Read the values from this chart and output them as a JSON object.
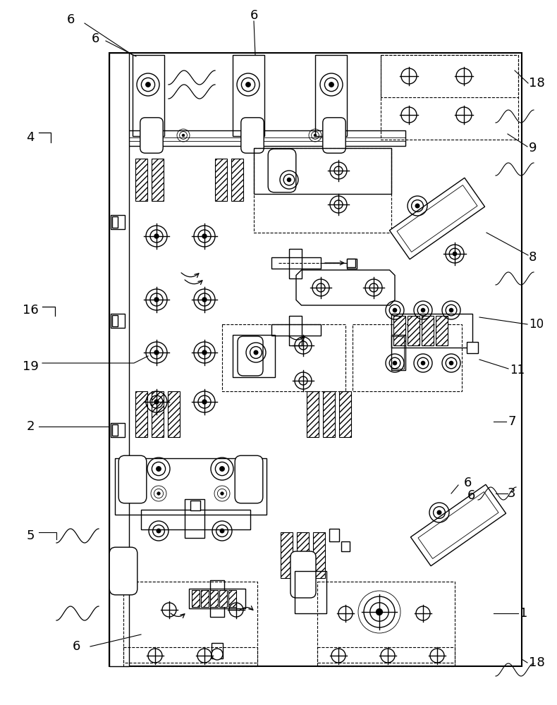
{
  "bg_color": "#ffffff",
  "line_color": "#000000",
  "lw": 1.0,
  "tlw": 0.6,
  "thw": 1.5,
  "dlw": 0.8,
  "fs": 13
}
